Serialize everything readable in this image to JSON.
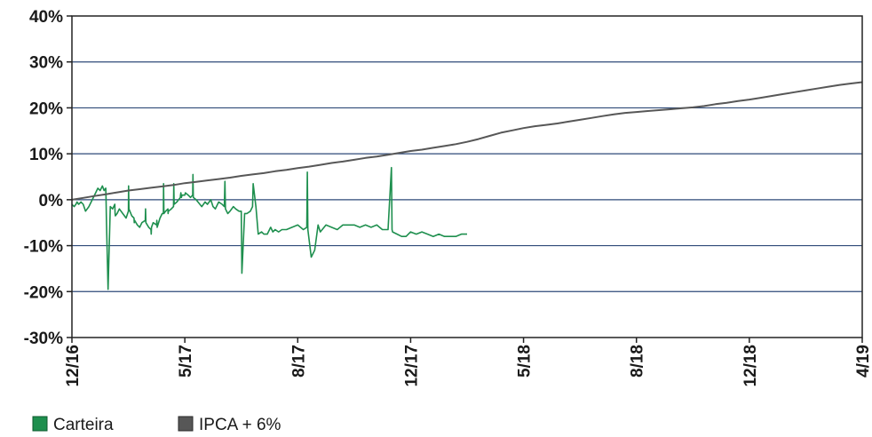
{
  "chart_data": {
    "type": "line",
    "title": "",
    "xlabel": "",
    "ylabel": "",
    "x_ticks": [
      "12/16",
      "5/17",
      "8/17",
      "12/17",
      "5/18",
      "8/18",
      "12/18",
      "4/19"
    ],
    "y_ticks": [
      "40%",
      "30%",
      "20%",
      "10%",
      "0%",
      "-10%",
      "-20%",
      "-30%"
    ],
    "ylim": [
      -30,
      40
    ],
    "grid": "horizontal",
    "legend_position": "bottom-left",
    "series": [
      {
        "name": "Carteira",
        "color": "#1e8f4e",
        "x": [
          0.0,
          0.2,
          0.35,
          0.45,
          0.6,
          0.8,
          1.0,
          1.2,
          1.5,
          1.8,
          2.1,
          2.3,
          2.5,
          2.7,
          2.85,
          3.0,
          3.02,
          3.05,
          3.2,
          3.4,
          3.6,
          3.8,
          3.82,
          3.85,
          4.0,
          4.2,
          4.5,
          4.8,
          5.0,
          5.02,
          5.05,
          5.3,
          5.5,
          5.52,
          5.55,
          5.8,
          6.0,
          6.2,
          6.5,
          6.52,
          6.55,
          6.8,
          7.0,
          7.02,
          7.05,
          7.2,
          7.5,
          7.52,
          7.55,
          7.8,
          8.0,
          8.1,
          8.12,
          8.15,
          8.3,
          8.5,
          8.52,
          8.55,
          8.8,
          9.0,
          9.02,
          9.05,
          9.3,
          9.6,
          9.62,
          9.65,
          9.7,
          9.75,
          10.0,
          10.05,
          10.3,
          10.5,
          10.7,
          10.72,
          10.75,
          11.0,
          11.5,
          11.8,
          12.0,
          12.3,
          12.5,
          12.7,
          13.0,
          13.3,
          13.5,
          13.55,
          13.6,
          13.8,
          14.0,
          14.3,
          14.5,
          14.8,
          15.0,
          15.05,
          15.3,
          15.5,
          15.8,
          16.0,
          16.05,
          16.3,
          16.5,
          16.8,
          17.0,
          17.3,
          17.6,
          17.8,
          18.0,
          18.3,
          18.6,
          19.0,
          19.5,
          20.0,
          20.5,
          20.8,
          20.85,
          20.9,
          21.2,
          21.5,
          21.8,
          22.0,
          22.5,
          23.0,
          23.5,
          24.0,
          24.5,
          25.0,
          25.5,
          26.0,
          26.5,
          27.0,
          27.5,
          28.0,
          28.3,
          28.35,
          28.4,
          28.8,
          29.2,
          29.6,
          29.8,
          30.0,
          30.5,
          31.0,
          31.5,
          32.0,
          32.5,
          33.0,
          33.5,
          34.0,
          34.5,
          35.0
        ],
        "y": [
          -1.0,
          -1.5,
          -1.0,
          -0.5,
          -1.0,
          -0.5,
          -1.0,
          -2.5,
          -1.5,
          0.0,
          1.5,
          2.5,
          2.0,
          3.0,
          2.0,
          2.5,
          0.5,
          -4.0,
          -19.5,
          -1.5,
          -2.0,
          -1.0,
          -3.0,
          -3.5,
          -3.0,
          -2.0,
          -3.0,
          -4.0,
          -2.5,
          3.0,
          -2.0,
          -3.5,
          -4.0,
          -5.0,
          -4.5,
          -5.5,
          -6.0,
          -5.0,
          -4.5,
          -2.0,
          -5.0,
          -6.0,
          -6.5,
          -7.5,
          -6.0,
          -5.0,
          -5.5,
          -4.5,
          -6.0,
          -4.0,
          -3.0,
          -3.0,
          3.5,
          -3.0,
          -2.5,
          -2.0,
          -3.0,
          -2.5,
          -2.0,
          -1.5,
          3.5,
          -1.0,
          -0.5,
          0.5,
          1.0,
          1.5,
          0.5,
          1.0,
          1.0,
          1.5,
          1.0,
          0.5,
          1.0,
          5.5,
          0.5,
          0.0,
          -1.5,
          -0.5,
          -1.0,
          0.0,
          -1.5,
          -2.0,
          -0.5,
          -1.0,
          -1.5,
          4.0,
          -2.0,
          -3.0,
          -2.5,
          -1.5,
          -2.0,
          -2.5,
          -2.5,
          -16.0,
          -3.0,
          -3.0,
          -2.5,
          -1.5,
          3.5,
          -1.5,
          -7.5,
          -7.0,
          -7.5,
          -7.5,
          -6.0,
          -7.0,
          -6.5,
          -7.0,
          -6.5,
          -6.5,
          -6.0,
          -5.5,
          -6.5,
          -6.0,
          6.0,
          -6.5,
          -12.5,
          -11.0,
          -5.5,
          -7.0,
          -5.5,
          -6.0,
          -6.5,
          -5.5,
          -5.5,
          -5.5,
          -6.0,
          -5.5,
          -6.0,
          -5.5,
          -6.5,
          -6.5,
          7.0,
          -6.5,
          -7.0,
          -7.5,
          -8.0,
          -8.0,
          -7.5,
          -7.0,
          -7.5,
          -7.0,
          -7.5,
          -8.0,
          -7.5,
          -8.0,
          -8.0,
          -8.0,
          -7.5,
          -7.5
        ]
      },
      {
        "name": "IPCA + 6%",
        "color": "#575757",
        "x": [
          0,
          1,
          2,
          3,
          4,
          5,
          6,
          7,
          8,
          9,
          10,
          11,
          12,
          13,
          14,
          15,
          16,
          17,
          18,
          19,
          20,
          21,
          22,
          23,
          24,
          25,
          26,
          27,
          28,
          29,
          30,
          31,
          32,
          33,
          34,
          35,
          36,
          37,
          38,
          39,
          40,
          41,
          42,
          43,
          44,
          45,
          46,
          47,
          48,
          49,
          50,
          51,
          52,
          53,
          54,
          55,
          56,
          57,
          58,
          59,
          60,
          61,
          62,
          63,
          64,
          65,
          66,
          67,
          68,
          69,
          70
        ],
        "y": [
          0.0,
          0.4,
          0.8,
          1.2,
          1.6,
          2.0,
          2.3,
          2.6,
          2.9,
          3.2,
          3.6,
          3.9,
          4.2,
          4.5,
          4.8,
          5.2,
          5.5,
          5.8,
          6.2,
          6.5,
          6.9,
          7.2,
          7.6,
          8.0,
          8.3,
          8.7,
          9.1,
          9.4,
          9.8,
          10.2,
          10.6,
          10.9,
          11.3,
          11.7,
          12.1,
          12.6,
          13.2,
          13.9,
          14.6,
          15.1,
          15.6,
          16.0,
          16.3,
          16.6,
          17.0,
          17.4,
          17.8,
          18.2,
          18.6,
          18.9,
          19.1,
          19.3,
          19.5,
          19.7,
          19.9,
          20.1,
          20.4,
          20.8,
          21.1,
          21.5,
          21.8,
          22.2,
          22.6,
          23.0,
          23.4,
          23.8,
          24.2,
          24.6,
          25.0,
          25.3,
          25.6
        ]
      }
    ]
  }
}
